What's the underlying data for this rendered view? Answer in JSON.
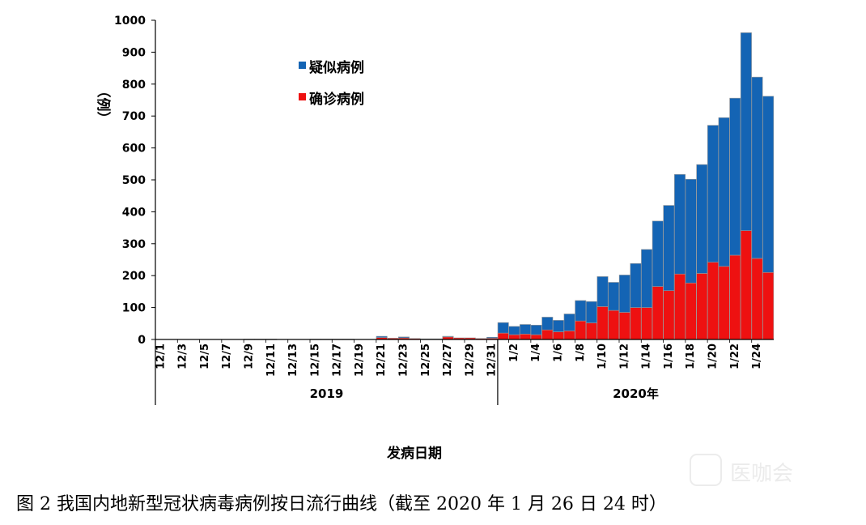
{
  "chart_data": {
    "type": "bar",
    "stacked": true,
    "ylabel": "（例）",
    "xlabel": "发病日期",
    "ylim": [
      0,
      1000
    ],
    "yticks": [
      0,
      100,
      200,
      300,
      400,
      500,
      600,
      700,
      800,
      900,
      1000
    ],
    "grid": false,
    "legend_position": "top-center",
    "legend": [
      "疑似病例",
      "确诊病例"
    ],
    "categories": [
      "12/1",
      "12/2",
      "12/3",
      "12/4",
      "12/5",
      "12/6",
      "12/7",
      "12/8",
      "12/9",
      "12/10",
      "12/11",
      "12/12",
      "12/13",
      "12/14",
      "12/15",
      "12/16",
      "12/17",
      "12/18",
      "12/19",
      "12/20",
      "12/21",
      "12/22",
      "12/23",
      "12/24",
      "12/25",
      "12/26",
      "12/27",
      "12/28",
      "12/29",
      "12/30",
      "12/31",
      "1/1",
      "1/2",
      "1/3",
      "1/4",
      "1/5",
      "1/6",
      "1/7",
      "1/8",
      "1/9",
      "1/10",
      "1/11",
      "1/12",
      "1/13",
      "1/14",
      "1/15",
      "1/16",
      "1/17",
      "1/18",
      "1/19",
      "1/20",
      "1/21",
      "1/22",
      "1/23",
      "1/24",
      "1/25"
    ],
    "tick_labels": [
      "12/1",
      "12/3",
      "12/5",
      "12/7",
      "12/9",
      "12/11",
      "12/13",
      "12/15",
      "12/17",
      "12/19",
      "12/21",
      "12/23",
      "12/25",
      "12/27",
      "12/29",
      "12/31",
      "1/2",
      "1/4",
      "1/6",
      "1/8",
      "1/10",
      "1/12",
      "1/14",
      "1/16",
      "1/18",
      "1/20",
      "1/22",
      "1/24"
    ],
    "groups": [
      {
        "label": "2019",
        "first": "12/1",
        "last": "12/31"
      },
      {
        "label": "2020年",
        "first": "1/1",
        "last": "1/25"
      }
    ],
    "series": [
      {
        "name": "确诊病例",
        "color": "#ee1111",
        "values": [
          0,
          0,
          0,
          0,
          0,
          0,
          0,
          0,
          1,
          1,
          1,
          0,
          0,
          0,
          1,
          1,
          1,
          1,
          0,
          0,
          6,
          4,
          5,
          3,
          2,
          2,
          8,
          5,
          5,
          3,
          4,
          20,
          15,
          17,
          15,
          30,
          24,
          27,
          58,
          52,
          103,
          91,
          85,
          100,
          100,
          166,
          153,
          205,
          177,
          207,
          242,
          229,
          264,
          341,
          254,
          210
        ]
      },
      {
        "name": "疑似病例",
        "color": "#1464b4",
        "values": [
          0,
          0,
          0,
          0,
          0,
          0,
          0,
          0,
          0,
          0,
          0,
          0,
          0,
          0,
          0,
          0,
          0,
          0,
          0,
          0,
          4,
          0,
          3,
          0,
          0,
          0,
          2,
          0,
          0,
          0,
          3,
          33,
          26,
          30,
          30,
          40,
          36,
          53,
          64,
          67,
          94,
          88,
          117,
          138,
          182,
          205,
          267,
          312,
          325,
          341,
          429,
          466,
          492,
          620,
          568,
          552
        ]
      }
    ],
    "caption": "图 2  我国内地新型冠状病毒病例按日流行曲线（截至 2020 年 1 月 26 日 24 时）",
    "watermark": "医咖会"
  }
}
